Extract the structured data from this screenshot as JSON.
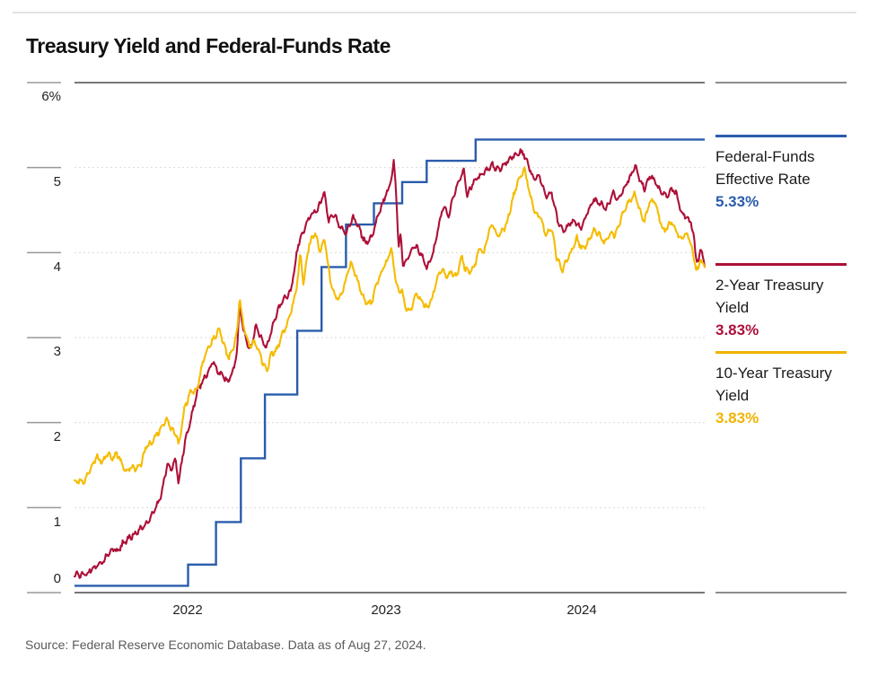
{
  "header": {
    "title": "Treasury Yield and Federal-Funds Rate"
  },
  "source_note": "Source: Federal Reserve Economic Database. Data as of Aug 27, 2024.",
  "legend": {
    "items": [
      {
        "line1": "Federal-Funds",
        "line2": "Effective Rate",
        "value": "5.33%",
        "color": "#2a5cac"
      },
      {
        "line1": "2-Year Treasury",
        "line2": "Yield",
        "value": "3.83%",
        "color": "#ad1038"
      },
      {
        "line1": "10-Year Treasury",
        "line2": "Yield",
        "value": "3.83%",
        "color": "#f0b400"
      }
    ]
  },
  "chart_data": {
    "type": "line",
    "title": "Treasury Yield and Federal-Funds Rate",
    "source_note": "Source: Federal Reserve Economic Database. Data as of Aug 27, 2024.",
    "units": "percent",
    "ylim": [
      0,
      6
    ],
    "y_tick_labels": [
      "6%",
      "5",
      "4",
      "3",
      "2",
      "1",
      "0"
    ],
    "y_tick_values": [
      6,
      5,
      4,
      3,
      2,
      1,
      0
    ],
    "x_tick_labels": [
      "2022",
      "2023",
      "2024"
    ],
    "x_range_decimal_years": [
      2021.67,
      2024.655
    ],
    "grid": "dashed horizontal gridlines, solid top and bottom border",
    "legend_position": "right",
    "series": [
      {
        "name": "Federal-Funds Effective Rate",
        "dom_name": "fed-funds-line",
        "style": "step",
        "color": "#2a5cac",
        "current_value_label": "5.33%",
        "points": [
          [
            2021.67,
            0.08
          ],
          [
            2022.208,
            0.33
          ],
          [
            2022.34,
            0.83
          ],
          [
            2022.458,
            1.58
          ],
          [
            2022.572,
            2.33
          ],
          [
            2022.725,
            3.08
          ],
          [
            2022.84,
            3.83
          ],
          [
            2022.956,
            4.33
          ],
          [
            2023.088,
            4.58
          ],
          [
            2023.222,
            4.83
          ],
          [
            2023.338,
            5.08
          ],
          [
            2023.57,
            5.33
          ]
        ]
      },
      {
        "name": "2-Year Treasury Yield",
        "dom_name": "two-year-line",
        "style": "line",
        "color": "#ad1038",
        "current_value_label": "3.83%",
        "points": [
          [
            2021.67,
            0.21
          ],
          [
            2021.7,
            0.22
          ],
          [
            2021.73,
            0.23
          ],
          [
            2021.76,
            0.28
          ],
          [
            2021.79,
            0.32
          ],
          [
            2021.82,
            0.43
          ],
          [
            2021.85,
            0.51
          ],
          [
            2021.875,
            0.48
          ],
          [
            2021.9,
            0.58
          ],
          [
            2021.93,
            0.66
          ],
          [
            2021.96,
            0.7
          ],
          [
            2022.0,
            0.77
          ],
          [
            2022.03,
            0.89
          ],
          [
            2022.06,
            1.02
          ],
          [
            2022.085,
            1.18
          ],
          [
            2022.11,
            1.5
          ],
          [
            2022.13,
            1.46
          ],
          [
            2022.148,
            1.58
          ],
          [
            2022.163,
            1.31
          ],
          [
            2022.19,
            1.72
          ],
          [
            2022.21,
            1.92
          ],
          [
            2022.23,
            2.14
          ],
          [
            2022.255,
            2.42
          ],
          [
            2022.28,
            2.5
          ],
          [
            2022.3,
            2.58
          ],
          [
            2022.325,
            2.7
          ],
          [
            2022.35,
            2.61
          ],
          [
            2022.37,
            2.56
          ],
          [
            2022.4,
            2.48
          ],
          [
            2022.425,
            2.64
          ],
          [
            2022.44,
            2.82
          ],
          [
            2022.452,
            3.42
          ],
          [
            2022.47,
            3.1
          ],
          [
            2022.5,
            2.84
          ],
          [
            2022.53,
            3.12
          ],
          [
            2022.555,
            2.98
          ],
          [
            2022.58,
            2.89
          ],
          [
            2022.62,
            3.24
          ],
          [
            2022.66,
            3.44
          ],
          [
            2022.695,
            3.56
          ],
          [
            2022.73,
            4.1
          ],
          [
            2022.76,
            4.27
          ],
          [
            2022.79,
            4.46
          ],
          [
            2022.82,
            4.5
          ],
          [
            2022.852,
            4.71
          ],
          [
            2022.875,
            4.36
          ],
          [
            2022.9,
            4.46
          ],
          [
            2022.93,
            4.3
          ],
          [
            2022.955,
            4.22
          ],
          [
            2022.99,
            4.41
          ],
          [
            2023.02,
            4.28
          ],
          [
            2023.05,
            4.12
          ],
          [
            2023.08,
            4.18
          ],
          [
            2023.11,
            4.45
          ],
          [
            2023.14,
            4.66
          ],
          [
            2023.165,
            4.8
          ],
          [
            2023.183,
            5.07
          ],
          [
            2023.195,
            4.62
          ],
          [
            2023.205,
            4.05
          ],
          [
            2023.215,
            4.2
          ],
          [
            2023.228,
            3.82
          ],
          [
            2023.25,
            3.98
          ],
          [
            2023.28,
            4.08
          ],
          [
            2023.31,
            3.98
          ],
          [
            2023.34,
            3.82
          ],
          [
            2023.37,
            4.02
          ],
          [
            2023.4,
            4.38
          ],
          [
            2023.42,
            4.54
          ],
          [
            2023.44,
            4.42
          ],
          [
            2023.47,
            4.72
          ],
          [
            2023.5,
            4.88
          ],
          [
            2023.513,
            4.98
          ],
          [
            2023.53,
            4.66
          ],
          [
            2023.56,
            4.84
          ],
          [
            2023.59,
            4.92
          ],
          [
            2023.62,
            4.95
          ],
          [
            2023.65,
            5.02
          ],
          [
            2023.68,
            4.98
          ],
          [
            2023.71,
            5.06
          ],
          [
            2023.74,
            5.1
          ],
          [
            2023.77,
            5.16
          ],
          [
            2023.793,
            5.2
          ],
          [
            2023.82,
            5.04
          ],
          [
            2023.84,
            4.86
          ],
          [
            2023.87,
            4.9
          ],
          [
            2023.9,
            4.68
          ],
          [
            2023.93,
            4.72
          ],
          [
            2023.96,
            4.36
          ],
          [
            2023.985,
            4.24
          ],
          [
            2024.01,
            4.34
          ],
          [
            2024.04,
            4.38
          ],
          [
            2024.07,
            4.26
          ],
          [
            2024.1,
            4.48
          ],
          [
            2024.13,
            4.64
          ],
          [
            2024.16,
            4.58
          ],
          [
            2024.19,
            4.5
          ],
          [
            2024.22,
            4.7
          ],
          [
            2024.25,
            4.64
          ],
          [
            2024.28,
            4.78
          ],
          [
            2024.31,
            4.92
          ],
          [
            2024.327,
            5.03
          ],
          [
            2024.35,
            4.84
          ],
          [
            2024.37,
            4.76
          ],
          [
            2024.4,
            4.9
          ],
          [
            2024.42,
            4.82
          ],
          [
            2024.45,
            4.72
          ],
          [
            2024.475,
            4.68
          ],
          [
            2024.5,
            4.74
          ],
          [
            2024.52,
            4.68
          ],
          [
            2024.545,
            4.48
          ],
          [
            2024.57,
            4.42
          ],
          [
            2024.59,
            4.36
          ],
          [
            2024.6,
            4.24
          ],
          [
            2024.615,
            3.92
          ],
          [
            2024.625,
            3.88
          ],
          [
            2024.635,
            4.04
          ],
          [
            2024.645,
            3.98
          ],
          [
            2024.655,
            3.83
          ]
        ]
      },
      {
        "name": "10-Year Treasury Yield",
        "dom_name": "ten-year-line",
        "style": "line",
        "color": "#f5bc00",
        "current_value_label": "3.83%",
        "points": [
          [
            2021.67,
            1.3
          ],
          [
            2021.7,
            1.33
          ],
          [
            2021.72,
            1.31
          ],
          [
            2021.75,
            1.48
          ],
          [
            2021.775,
            1.6
          ],
          [
            2021.8,
            1.55
          ],
          [
            2021.825,
            1.63
          ],
          [
            2021.85,
            1.56
          ],
          [
            2021.87,
            1.63
          ],
          [
            2021.89,
            1.55
          ],
          [
            2021.915,
            1.42
          ],
          [
            2021.94,
            1.48
          ],
          [
            2021.96,
            1.45
          ],
          [
            2021.985,
            1.51
          ],
          [
            2022.01,
            1.73
          ],
          [
            2022.04,
            1.78
          ],
          [
            2022.06,
            1.85
          ],
          [
            2022.08,
            1.93
          ],
          [
            2022.105,
            2.04
          ],
          [
            2022.13,
            1.93
          ],
          [
            2022.155,
            1.84
          ],
          [
            2022.163,
            1.72
          ],
          [
            2022.19,
            2.14
          ],
          [
            2022.22,
            2.38
          ],
          [
            2022.25,
            2.4
          ],
          [
            2022.28,
            2.72
          ],
          [
            2022.31,
            2.91
          ],
          [
            2022.34,
            3.04
          ],
          [
            2022.355,
            3.12
          ],
          [
            2022.38,
            2.89
          ],
          [
            2022.4,
            2.74
          ],
          [
            2022.42,
            2.85
          ],
          [
            2022.44,
            3.05
          ],
          [
            2022.452,
            3.48
          ],
          [
            2022.47,
            3.16
          ],
          [
            2022.5,
            2.89
          ],
          [
            2022.52,
            2.96
          ],
          [
            2022.55,
            2.8
          ],
          [
            2022.58,
            2.61
          ],
          [
            2022.6,
            2.79
          ],
          [
            2022.63,
            2.85
          ],
          [
            2022.655,
            3.04
          ],
          [
            2022.69,
            3.26
          ],
          [
            2022.72,
            3.55
          ],
          [
            2022.74,
            3.96
          ],
          [
            2022.755,
            3.63
          ],
          [
            2022.78,
            4.1
          ],
          [
            2022.81,
            4.24
          ],
          [
            2022.83,
            4.01
          ],
          [
            2022.855,
            4.15
          ],
          [
            2022.88,
            3.68
          ],
          [
            2022.9,
            3.53
          ],
          [
            2022.925,
            3.45
          ],
          [
            2022.95,
            3.62
          ],
          [
            2022.98,
            3.88
          ],
          [
            2023.0,
            3.75
          ],
          [
            2023.03,
            3.53
          ],
          [
            2023.055,
            3.38
          ],
          [
            2023.08,
            3.42
          ],
          [
            2023.1,
            3.63
          ],
          [
            2023.13,
            3.82
          ],
          [
            2023.16,
            3.95
          ],
          [
            2023.168,
            4.06
          ],
          [
            2023.19,
            3.7
          ],
          [
            2023.205,
            3.52
          ],
          [
            2023.22,
            3.6
          ],
          [
            2023.235,
            3.38
          ],
          [
            2023.26,
            3.3
          ],
          [
            2023.29,
            3.52
          ],
          [
            2023.31,
            3.44
          ],
          [
            2023.34,
            3.36
          ],
          [
            2023.365,
            3.47
          ],
          [
            2023.39,
            3.7
          ],
          [
            2023.41,
            3.8
          ],
          [
            2023.435,
            3.72
          ],
          [
            2023.455,
            3.78
          ],
          [
            2023.48,
            3.72
          ],
          [
            2023.505,
            3.95
          ],
          [
            2023.52,
            3.8
          ],
          [
            2023.54,
            3.76
          ],
          [
            2023.565,
            3.86
          ],
          [
            2023.59,
            4.06
          ],
          [
            2023.61,
            3.98
          ],
          [
            2023.63,
            4.22
          ],
          [
            2023.65,
            4.34
          ],
          [
            2023.67,
            4.2
          ],
          [
            2023.7,
            4.26
          ],
          [
            2023.72,
            4.35
          ],
          [
            2023.745,
            4.62
          ],
          [
            2023.77,
            4.85
          ],
          [
            2023.8,
            4.99
          ],
          [
            2023.815,
            4.84
          ],
          [
            2023.83,
            4.64
          ],
          [
            2023.855,
            4.44
          ],
          [
            2023.88,
            4.42
          ],
          [
            2023.9,
            4.22
          ],
          [
            2023.93,
            4.28
          ],
          [
            2023.955,
            3.92
          ],
          [
            2023.98,
            3.8
          ],
          [
            2024.0,
            3.92
          ],
          [
            2024.025,
            4.02
          ],
          [
            2024.05,
            4.16
          ],
          [
            2024.075,
            4.02
          ],
          [
            2024.1,
            4.12
          ],
          [
            2024.13,
            4.28
          ],
          [
            2024.15,
            4.22
          ],
          [
            2024.18,
            4.1
          ],
          [
            2024.205,
            4.22
          ],
          [
            2024.23,
            4.22
          ],
          [
            2024.25,
            4.34
          ],
          [
            2024.28,
            4.52
          ],
          [
            2024.305,
            4.62
          ],
          [
            2024.325,
            4.7
          ],
          [
            2024.35,
            4.48
          ],
          [
            2024.37,
            4.36
          ],
          [
            2024.395,
            4.58
          ],
          [
            2024.42,
            4.62
          ],
          [
            2024.44,
            4.42
          ],
          [
            2024.46,
            4.26
          ],
          [
            2024.48,
            4.3
          ],
          [
            2024.5,
            4.36
          ],
          [
            2024.52,
            4.24
          ],
          [
            2024.545,
            4.18
          ],
          [
            2024.57,
            4.24
          ],
          [
            2024.585,
            4.14
          ],
          [
            2024.6,
            3.98
          ],
          [
            2024.615,
            3.8
          ],
          [
            2024.625,
            3.78
          ],
          [
            2024.635,
            3.95
          ],
          [
            2024.645,
            3.88
          ],
          [
            2024.655,
            3.83
          ]
        ]
      }
    ]
  }
}
